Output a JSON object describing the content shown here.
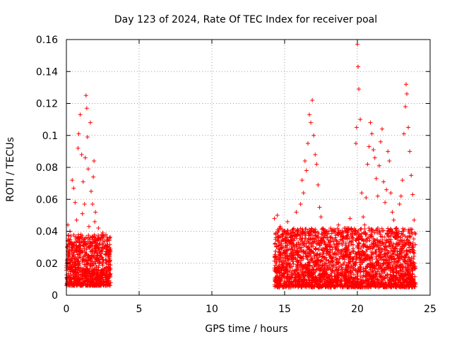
{
  "chart_data": {
    "type": "scatter",
    "title": "Day 123 of 2024, Rate Of TEC Index for receiver poal",
    "xlabel": "GPS time / hours",
    "ylabel": "ROTI / TECUs",
    "xlim": [
      0,
      25
    ],
    "ylim": [
      0,
      0.16
    ],
    "xticks": [
      0,
      5,
      10,
      15,
      20,
      25
    ],
    "xtick_labels": [
      "0",
      "5",
      "10",
      "15",
      "20",
      "25"
    ],
    "yticks": [
      0,
      0.02,
      0.04,
      0.06,
      0.08,
      0.1,
      0.12,
      0.14,
      0.16
    ],
    "ytick_labels": [
      "0",
      "0.02",
      "0.04",
      "0.06",
      "0.08",
      "0.1",
      "0.12",
      "0.14",
      "0.16"
    ],
    "grid": true,
    "marker": "+",
    "marker_color": "#ff0000",
    "axis_color": "#000000",
    "grid_color": "#a0a0a0",
    "series": [
      {
        "name": "ROTI",
        "points": [
          [
            0.05,
            0.03
          ],
          [
            0.1,
            0.044
          ],
          [
            0.15,
            0.025
          ],
          [
            0.2,
            0.018
          ],
          [
            0.25,
            0.04
          ],
          [
            0.3,
            0.022
          ],
          [
            0.35,
            0.033
          ],
          [
            0.4,
            0.072
          ],
          [
            0.45,
            0.015
          ],
          [
            0.5,
            0.067
          ],
          [
            0.55,
            0.028
          ],
          [
            0.6,
            0.058
          ],
          [
            0.65,
            0.02
          ],
          [
            0.7,
            0.047
          ],
          [
            0.75,
            0.034
          ],
          [
            0.8,
            0.092
          ],
          [
            0.85,
            0.101
          ],
          [
            0.9,
            0.027
          ],
          [
            0.95,
            0.113
          ],
          [
            1.0,
            0.038
          ],
          [
            1.05,
            0.088
          ],
          [
            1.1,
            0.051
          ],
          [
            1.15,
            0.071
          ],
          [
            1.2,
            0.024
          ],
          [
            1.25,
            0.057
          ],
          [
            1.3,
            0.086
          ],
          [
            1.35,
            0.125
          ],
          [
            1.4,
            0.117
          ],
          [
            1.45,
            0.099
          ],
          [
            1.5,
            0.079
          ],
          [
            1.55,
            0.043
          ],
          [
            1.6,
            0.03
          ],
          [
            1.65,
            0.108
          ],
          [
            1.7,
            0.065
          ],
          [
            1.75,
            0.036
          ],
          [
            1.8,
            0.057
          ],
          [
            1.85,
            0.074
          ],
          [
            1.9,
            0.084
          ],
          [
            1.95,
            0.046
          ],
          [
            2.0,
            0.052
          ],
          [
            2.1,
            0.032
          ],
          [
            2.2,
            0.042
          ],
          [
            2.3,
            0.026
          ],
          [
            2.4,
            0.036
          ],
          [
            2.5,
            0.039
          ],
          [
            2.6,
            0.03
          ],
          [
            2.7,
            0.022
          ],
          [
            2.8,
            0.034
          ],
          [
            2.9,
            0.021
          ],
          [
            3.0,
            0.017
          ],
          [
            14.3,
            0.048
          ],
          [
            14.4,
            0.036
          ],
          [
            14.5,
            0.05
          ],
          [
            14.6,
            0.029
          ],
          [
            14.7,
            0.043
          ],
          [
            14.8,
            0.031
          ],
          [
            14.9,
            0.038
          ],
          [
            15.0,
            0.035
          ],
          [
            15.2,
            0.046
          ],
          [
            15.4,
            0.033
          ],
          [
            15.6,
            0.041
          ],
          [
            15.8,
            0.052
          ],
          [
            16.0,
            0.038
          ],
          [
            16.1,
            0.057
          ],
          [
            16.2,
            0.072
          ],
          [
            16.3,
            0.064
          ],
          [
            16.4,
            0.084
          ],
          [
            16.5,
            0.078
          ],
          [
            16.6,
            0.095
          ],
          [
            16.7,
            0.113
          ],
          [
            16.8,
            0.108
          ],
          [
            16.9,
            0.122
          ],
          [
            17.0,
            0.1
          ],
          [
            17.1,
            0.088
          ],
          [
            17.2,
            0.082
          ],
          [
            17.3,
            0.069
          ],
          [
            17.4,
            0.055
          ],
          [
            17.5,
            0.049
          ],
          [
            17.7,
            0.036
          ],
          [
            17.9,
            0.031
          ],
          [
            18.1,
            0.034
          ],
          [
            18.3,
            0.041
          ],
          [
            18.5,
            0.036
          ],
          [
            18.7,
            0.044
          ],
          [
            18.9,
            0.038
          ],
          [
            19.1,
            0.042
          ],
          [
            19.3,
            0.035
          ],
          [
            19.5,
            0.048
          ],
          [
            19.7,
            0.04
          ],
          [
            19.9,
            0.095
          ],
          [
            19.95,
            0.105
          ],
          [
            20.0,
            0.157
          ],
          [
            20.05,
            0.143
          ],
          [
            20.1,
            0.129
          ],
          [
            20.2,
            0.11
          ],
          [
            20.3,
            0.064
          ],
          [
            20.4,
            0.049
          ],
          [
            20.5,
            0.044
          ],
          [
            20.6,
            0.061
          ],
          [
            20.7,
            0.082
          ],
          [
            20.8,
            0.093
          ],
          [
            20.9,
            0.108
          ],
          [
            21.0,
            0.101
          ],
          [
            21.1,
            0.091
          ],
          [
            21.2,
            0.086
          ],
          [
            21.3,
            0.073
          ],
          [
            21.4,
            0.062
          ],
          [
            21.5,
            0.081
          ],
          [
            21.6,
            0.096
          ],
          [
            21.7,
            0.104
          ],
          [
            21.8,
            0.071
          ],
          [
            21.9,
            0.058
          ],
          [
            22.0,
            0.066
          ],
          [
            22.1,
            0.09
          ],
          [
            22.2,
            0.084
          ],
          [
            22.3,
            0.064
          ],
          [
            22.4,
            0.052
          ],
          [
            22.5,
            0.047
          ],
          [
            22.7,
            0.042
          ],
          [
            22.9,
            0.057
          ],
          [
            23.0,
            0.062
          ],
          [
            23.1,
            0.072
          ],
          [
            23.2,
            0.101
          ],
          [
            23.3,
            0.118
          ],
          [
            23.35,
            0.132
          ],
          [
            23.4,
            0.126
          ],
          [
            23.5,
            0.105
          ],
          [
            23.6,
            0.09
          ],
          [
            23.7,
            0.075
          ],
          [
            23.8,
            0.063
          ],
          [
            23.9,
            0.047
          ],
          [
            23.95,
            0.039
          ]
        ]
      }
    ]
  }
}
